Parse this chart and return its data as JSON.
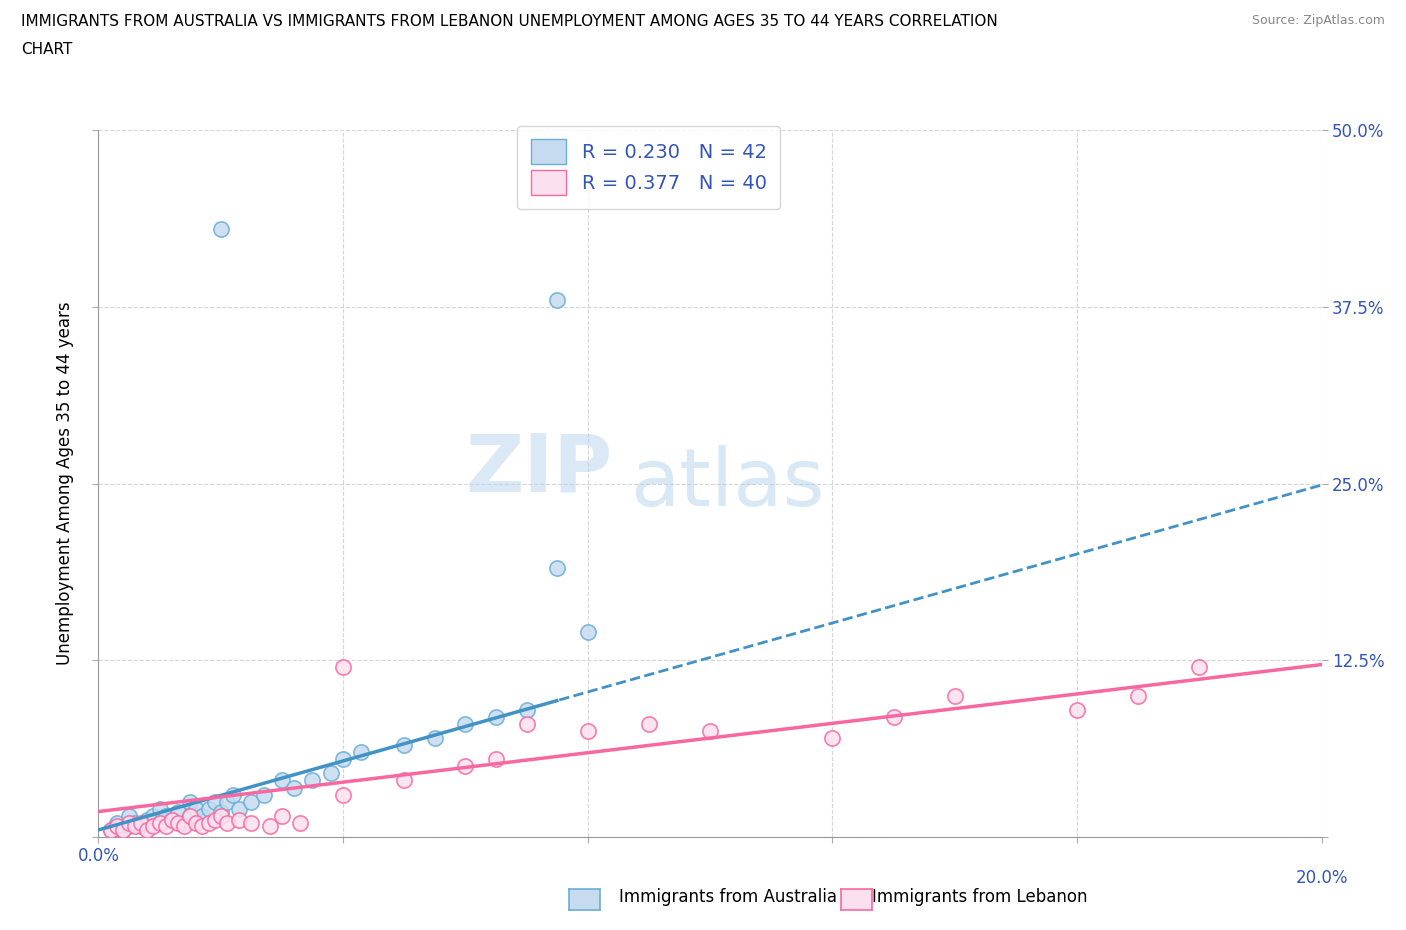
{
  "title_line1": "IMMIGRANTS FROM AUSTRALIA VS IMMIGRANTS FROM LEBANON UNEMPLOYMENT AMONG AGES 35 TO 44 YEARS CORRELATION",
  "title_line2": "CHART",
  "source": "Source: ZipAtlas.com",
  "ylabel": "Unemployment Among Ages 35 to 44 years",
  "xmin": 0.0,
  "xmax": 0.2,
  "ymin": 0.0,
  "ymax": 0.5,
  "xticks": [
    0.0,
    0.04,
    0.08,
    0.12,
    0.16,
    0.2
  ],
  "yticks": [
    0.0,
    0.125,
    0.25,
    0.375,
    0.5
  ],
  "legend_label1": "Immigrants from Australia",
  "legend_label2": "Immigrants from Lebanon",
  "R1": 0.23,
  "N1": 42,
  "R2": 0.377,
  "N2": 40,
  "color1_edge": "#6baed6",
  "color2_edge": "#f768a1",
  "color1_fill": "#c6dbef",
  "color2_fill": "#fde0ef",
  "line1_color": "#4292c6",
  "line2_color": "#f768a1",
  "watermark_zip": "ZIP",
  "watermark_atlas": "atlas",
  "line1_intercept": 0.005,
  "line1_slope": 1.22,
  "line2_intercept": 0.018,
  "line2_slope": 0.52,
  "line1_solid_end": 0.075,
  "scatter1_x": [
    0.002,
    0.003,
    0.004,
    0.005,
    0.005,
    0.006,
    0.007,
    0.008,
    0.009,
    0.01,
    0.01,
    0.011,
    0.012,
    0.013,
    0.014,
    0.015,
    0.015,
    0.016,
    0.017,
    0.018,
    0.019,
    0.02,
    0.021,
    0.022,
    0.023,
    0.025,
    0.027,
    0.03,
    0.032,
    0.035,
    0.038,
    0.04,
    0.043,
    0.05,
    0.055,
    0.06,
    0.065,
    0.07,
    0.075,
    0.08,
    0.075,
    0.02
  ],
  "scatter1_y": [
    0.005,
    0.01,
    0.005,
    0.008,
    0.015,
    0.01,
    0.008,
    0.012,
    0.015,
    0.01,
    0.02,
    0.015,
    0.012,
    0.018,
    0.01,
    0.015,
    0.025,
    0.02,
    0.015,
    0.02,
    0.025,
    0.018,
    0.025,
    0.03,
    0.02,
    0.025,
    0.03,
    0.04,
    0.035,
    0.04,
    0.045,
    0.055,
    0.06,
    0.065,
    0.07,
    0.08,
    0.085,
    0.09,
    0.19,
    0.145,
    0.38,
    0.43
  ],
  "scatter2_x": [
    0.002,
    0.003,
    0.004,
    0.005,
    0.006,
    0.007,
    0.008,
    0.009,
    0.01,
    0.011,
    0.012,
    0.013,
    0.014,
    0.015,
    0.016,
    0.017,
    0.018,
    0.019,
    0.02,
    0.021,
    0.023,
    0.025,
    0.028,
    0.03,
    0.033,
    0.04,
    0.05,
    0.06,
    0.065,
    0.07,
    0.08,
    0.09,
    0.1,
    0.12,
    0.13,
    0.14,
    0.16,
    0.17,
    0.18,
    0.04
  ],
  "scatter2_y": [
    0.005,
    0.008,
    0.005,
    0.01,
    0.008,
    0.01,
    0.005,
    0.008,
    0.01,
    0.008,
    0.012,
    0.01,
    0.008,
    0.015,
    0.01,
    0.008,
    0.01,
    0.012,
    0.015,
    0.01,
    0.012,
    0.01,
    0.008,
    0.015,
    0.01,
    0.03,
    0.04,
    0.05,
    0.055,
    0.08,
    0.075,
    0.08,
    0.075,
    0.07,
    0.085,
    0.1,
    0.09,
    0.1,
    0.12,
    0.12
  ]
}
